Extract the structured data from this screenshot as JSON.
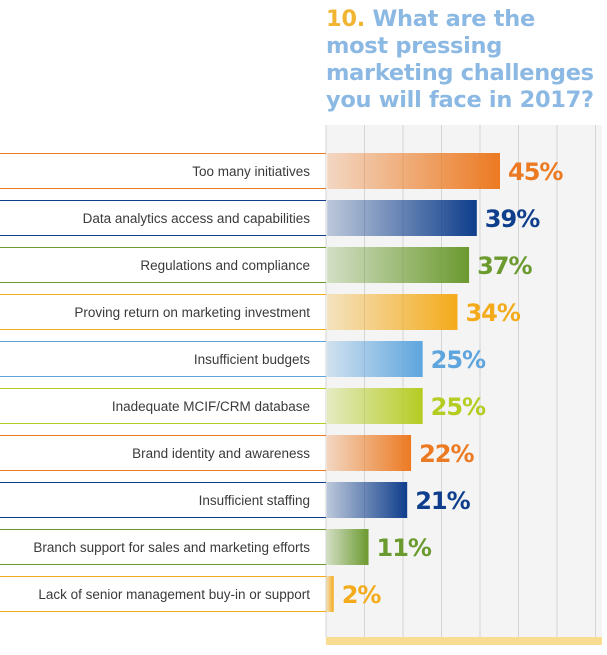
{
  "title": {
    "number": "10.",
    "text": "What are the most pressing marketing challenges you will face in 2017?"
  },
  "chart_data": {
    "type": "bar",
    "orientation": "horizontal",
    "categories": [
      "Too many initiatives",
      "Data analytics access and capabilities",
      "Regulations and compliance",
      "Proving return on marketing investment",
      "Insufficient budgets",
      "Inadequate MCIF/CRM database",
      "Brand identity and awareness",
      "Insufficient staffing",
      "Branch support for sales and marketing efforts",
      "Lack of senior management buy-in or support"
    ],
    "values": [
      45,
      39,
      37,
      34,
      25,
      25,
      22,
      21,
      11,
      2
    ],
    "value_labels": [
      "45%",
      "39%",
      "37%",
      "34%",
      "25%",
      "25%",
      "22%",
      "21%",
      "11%",
      "2%"
    ],
    "unit": "%",
    "xlim": [
      0,
      50
    ],
    "grid": true,
    "colors": [
      "#ec7a22",
      "#0f3e8c",
      "#6b9a2f",
      "#f4ab1b",
      "#5ea5de",
      "#b5cc22",
      "#ec7a22",
      "#0f3e8c",
      "#6b9a2f",
      "#f4ab1b"
    ]
  }
}
